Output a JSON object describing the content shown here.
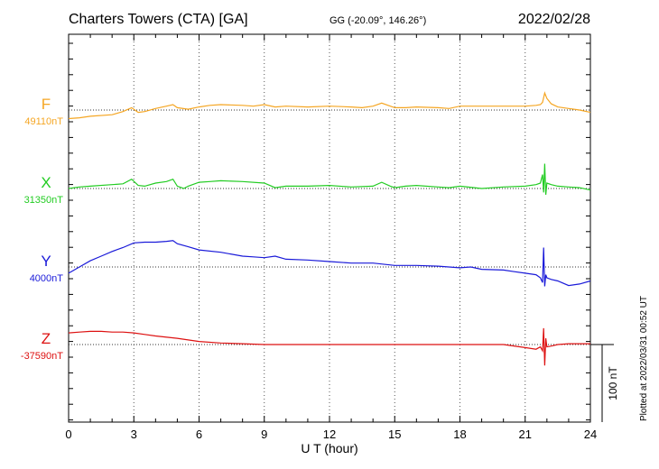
{
  "header": {
    "station": "Charters Towers (CTA)  [GA]",
    "coords": "GG (-20.09°, 146.26°)",
    "date": "2022/02/28"
  },
  "plotted_note": "Plotted at 2022/03/31 00:52 UT",
  "scale_label": "100 nT",
  "chart_data": {
    "type": "line",
    "xlabel": "U T (hour)",
    "xlim": [
      0,
      24
    ],
    "xticks": [
      "0",
      "3",
      "6",
      "9",
      "12",
      "15",
      "18",
      "21",
      "24"
    ],
    "scale_bar_nT": 100,
    "grid": "dotted",
    "series": [
      {
        "name": "F",
        "baseline_label": "49110nT",
        "color": "#F5A623",
        "x": [
          0,
          0.5,
          1,
          2,
          2.5,
          2.9,
          3.2,
          3.5,
          4,
          4.5,
          4.8,
          5,
          5.5,
          6,
          6.5,
          7,
          8,
          8.5,
          9,
          9.5,
          10,
          11,
          12,
          13,
          13.5,
          14,
          14.4,
          14.8,
          15,
          15.5,
          16,
          17,
          17.5,
          18,
          19,
          20,
          21,
          21.5,
          21.7,
          21.8,
          21.9,
          22,
          22.2,
          22.5,
          23,
          23.5,
          24
        ],
        "y": [
          -11,
          -10,
          -8,
          -6,
          -2,
          3,
          -3,
          -2,
          2,
          5,
          7,
          3,
          1,
          4,
          6,
          7,
          6,
          5,
          7,
          4,
          5,
          4,
          5,
          4,
          3,
          5,
          9,
          5,
          3,
          3,
          4,
          3,
          2,
          5,
          5,
          5,
          5,
          6,
          7,
          10,
          22,
          15,
          8,
          4,
          2,
          0,
          -3
        ]
      },
      {
        "name": "X",
        "baseline_label": "31350nT",
        "color": "#22CC22",
        "x": [
          0,
          0.5,
          1,
          2,
          2.5,
          2.9,
          3.2,
          3.5,
          4,
          4.5,
          4.8,
          5,
          5.3,
          5.5,
          6,
          6.5,
          7,
          8,
          9,
          9.5,
          10,
          11,
          12,
          13,
          14,
          14.4,
          14.8,
          15,
          15.5,
          16,
          17,
          17.5,
          18,
          19,
          20,
          21,
          21.5,
          21.7,
          21.8,
          21.85,
          21.9,
          21.95,
          22,
          22.2,
          22.5,
          23,
          23.5,
          24
        ],
        "y": [
          0,
          2,
          3,
          5,
          6,
          12,
          4,
          3,
          7,
          9,
          12,
          3,
          0,
          3,
          8,
          9,
          10,
          9,
          7,
          1,
          3,
          3,
          4,
          2,
          3,
          8,
          3,
          1,
          3,
          4,
          2,
          1,
          3,
          0,
          2,
          3,
          5,
          7,
          18,
          -5,
          32,
          -8,
          7,
          5,
          3,
          2,
          1,
          -2
        ]
      },
      {
        "name": "Y",
        "baseline_label": "4000nT",
        "color": "#1A1AD9",
        "x": [
          0,
          0.5,
          1,
          1.5,
          2,
          2.5,
          3,
          3.5,
          4,
          4.5,
          4.8,
          5,
          5.5,
          6,
          7,
          8,
          8.5,
          9,
          9.5,
          10,
          11,
          12,
          13,
          14,
          15,
          16,
          17,
          18,
          18.5,
          19,
          20,
          20.5,
          21,
          21.5,
          21.7,
          21.8,
          21.85,
          21.9,
          21.95,
          22,
          22.2,
          22.5,
          23,
          23.5,
          24
        ],
        "y": [
          -8,
          0,
          8,
          14,
          20,
          25,
          31,
          32,
          32,
          33,
          34,
          30,
          26,
          22,
          19,
          14,
          13,
          12,
          14,
          10,
          9,
          7,
          5,
          5,
          2,
          2,
          1,
          -1,
          0,
          -3,
          -4,
          -6,
          -8,
          -10,
          -14,
          -20,
          25,
          -25,
          -10,
          -14,
          -16,
          -18,
          -24,
          -22,
          -18
        ]
      },
      {
        "name": "Z",
        "baseline_label": "-37590nT",
        "color": "#DD1111",
        "x": [
          0,
          0.5,
          1,
          1.5,
          2,
          2.5,
          3,
          3.5,
          4,
          5,
          6,
          7,
          8,
          9,
          10,
          12,
          14,
          16,
          18,
          20,
          21,
          21.5,
          21.7,
          21.8,
          21.85,
          21.9,
          21.95,
          22,
          22.2,
          22.5,
          23,
          24
        ],
        "y": [
          15,
          16,
          17,
          17,
          16,
          16,
          15,
          13,
          11,
          8,
          4,
          2,
          1,
          0,
          0,
          0,
          0,
          0,
          0,
          0,
          -4,
          -6,
          -3,
          -8,
          21,
          -27,
          8,
          -3,
          -2,
          0,
          1,
          1
        ]
      }
    ]
  }
}
